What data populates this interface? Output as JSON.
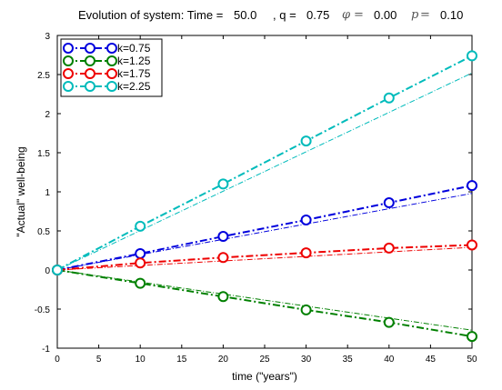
{
  "header": {
    "prefix": "Evolution of system: Time =",
    "time_value": "50.0",
    "q_label": ", q =",
    "q_value": "0.75",
    "phi_symbol": "φ",
    "phi_eq": "=",
    "phi_value": "0.00",
    "p_symbol": "p",
    "p_eq": "=",
    "p_value": "0.10"
  },
  "chart_data": {
    "type": "line",
    "xlabel": "time (\"years\")",
    "ylabel": "\"Actual\" well-being",
    "xlim": [
      0,
      50
    ],
    "ylim": [
      -1,
      3
    ],
    "xticks": [
      0,
      5,
      10,
      15,
      20,
      25,
      30,
      35,
      40,
      45,
      50
    ],
    "yticks": [
      -1,
      -0.5,
      0,
      0.5,
      1,
      1.5,
      2,
      2.5,
      3
    ],
    "xtick_labels": [
      "0",
      "5",
      "10",
      "15",
      "20",
      "25",
      "30",
      "35",
      "40",
      "45",
      "50"
    ],
    "ytick_labels": [
      "-1",
      "-0.5",
      "0",
      "0.5",
      "1",
      "1.5",
      "2",
      "2.5",
      "3"
    ],
    "grid": false,
    "legend_position": "top-left",
    "series": [
      {
        "name": "k=0.75",
        "color": "#0000dd",
        "marker_x": [
          0,
          10,
          20,
          30,
          40,
          50
        ],
        "marker_y": [
          0,
          0.21,
          0.43,
          0.64,
          0.86,
          1.08
        ],
        "trend_x": [
          0,
          50
        ],
        "trend_y": [
          0,
          0.98
        ]
      },
      {
        "name": "k=1.25",
        "color": "#008000",
        "marker_x": [
          0,
          10,
          20,
          30,
          40,
          50
        ],
        "marker_y": [
          0,
          -0.17,
          -0.34,
          -0.51,
          -0.67,
          -0.85
        ],
        "trend_x": [
          0,
          50
        ],
        "trend_y": [
          0,
          -0.77
        ]
      },
      {
        "name": "k=1.75",
        "color": "#ee0000",
        "marker_x": [
          0,
          10,
          20,
          30,
          40,
          50
        ],
        "marker_y": [
          0,
          0.09,
          0.16,
          0.22,
          0.28,
          0.32
        ],
        "trend_x": [
          0,
          50
        ],
        "trend_y": [
          0,
          0.29
        ]
      },
      {
        "name": "k=2.25",
        "color": "#00bbbb",
        "marker_x": [
          0,
          10,
          20,
          30,
          40,
          50
        ],
        "marker_y": [
          0,
          0.56,
          1.1,
          1.65,
          2.2,
          2.74
        ],
        "trend_x": [
          0,
          50
        ],
        "trend_y": [
          0,
          2.52
        ]
      }
    ]
  }
}
